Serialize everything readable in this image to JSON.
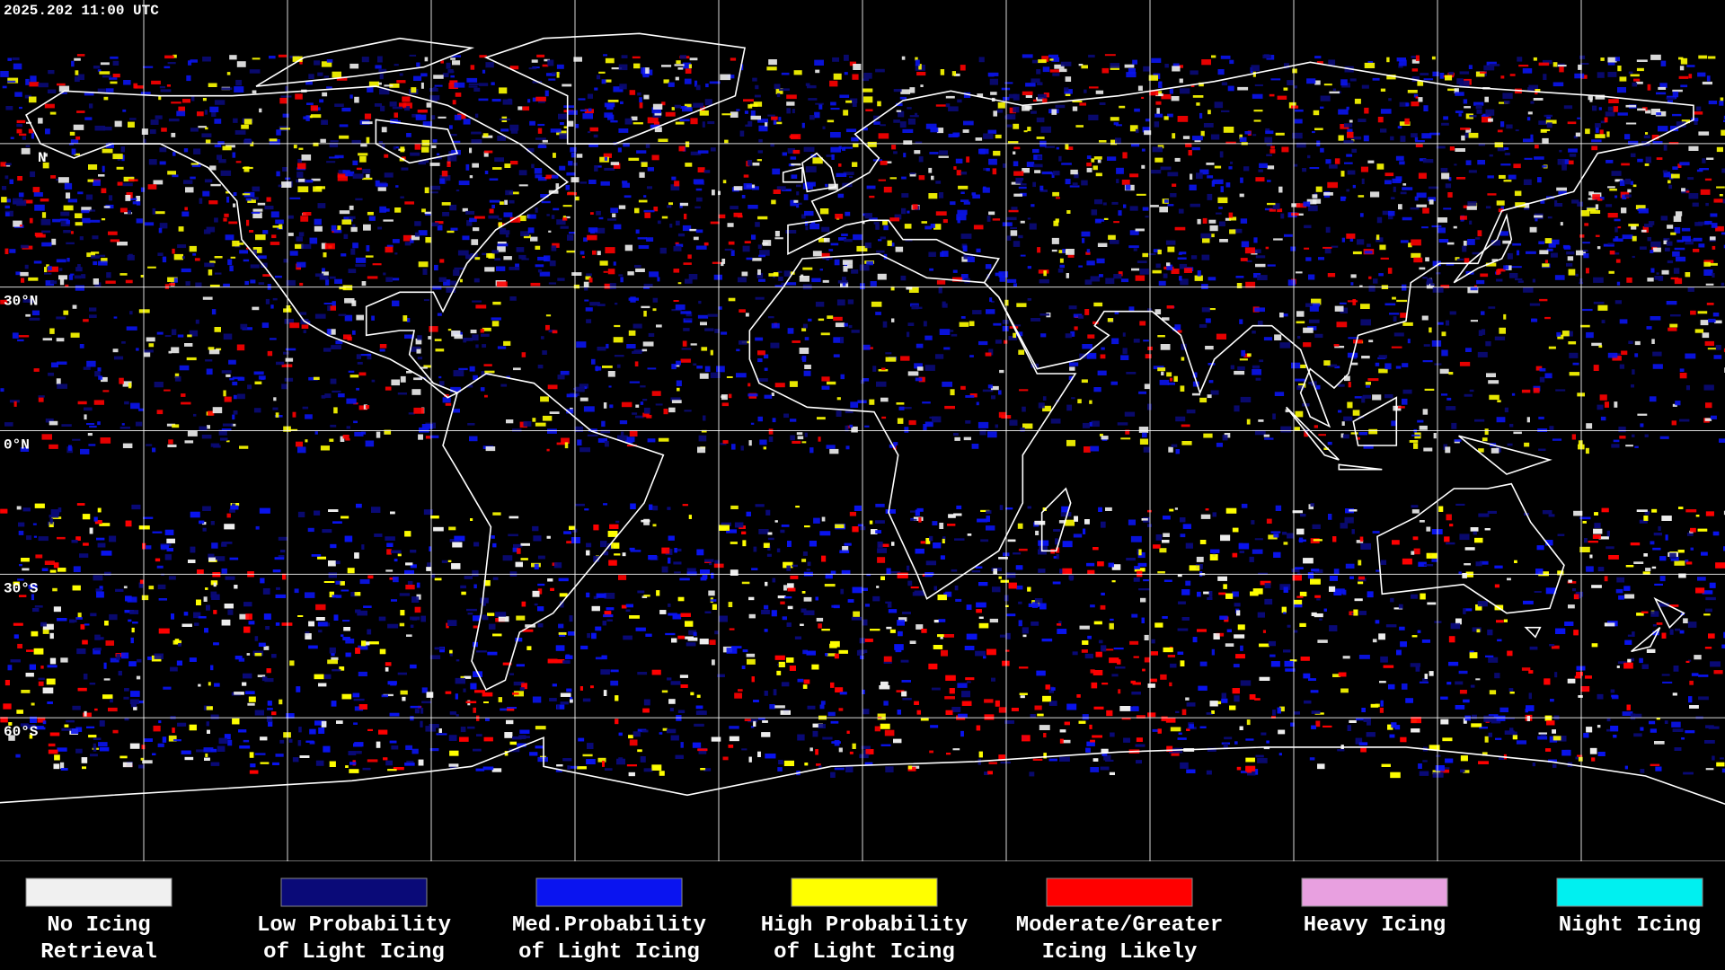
{
  "timestamp": "2025.202 11:00 UTC",
  "latitude_labels": [
    "N",
    "30°N",
    "0°N",
    "30°S",
    "60°S"
  ],
  "legend": [
    {
      "color": "#f0f0f0",
      "label": [
        "No Icing",
        "Retrieval"
      ]
    },
    {
      "color": "#0a0a78",
      "label": [
        "Low Probability",
        "of Light Icing"
      ]
    },
    {
      "color": "#0a14f0",
      "label": [
        "Med.Probability",
        "of Light Icing"
      ]
    },
    {
      "color": "#ffff00",
      "label": [
        "High Probability",
        "of Light Icing"
      ]
    },
    {
      "color": "#ff0000",
      "label": [
        "Moderate/Greater",
        "Icing Likely"
      ]
    },
    {
      "color": "#e8a0e0",
      "label": [
        "Heavy Icing"
      ]
    },
    {
      "color": "#00f0f0",
      "label": [
        "Night Icing"
      ]
    }
  ]
}
